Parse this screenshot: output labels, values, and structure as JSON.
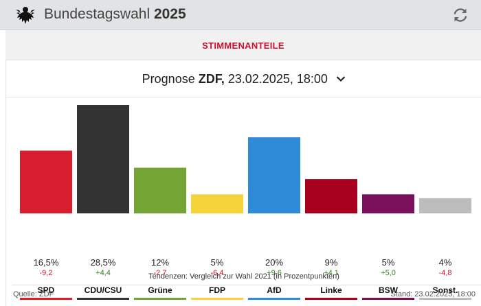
{
  "header": {
    "title": "Bundestagswahl",
    "year": "2025",
    "logo_icon": "federal-eagle-icon",
    "refresh_icon": "refresh-icon"
  },
  "tab": {
    "label": "STIMMENANTEILE"
  },
  "forecast": {
    "prefix": "Prognose",
    "source": "ZDF,",
    "datetime": "23.02.2025, 18:00",
    "dropdown_icon": "chevron-down-icon"
  },
  "colors": {
    "accent": "#d0102f",
    "positive": "#2e7d1a",
    "negative": "#d0102f"
  },
  "chart_data": {
    "type": "bar",
    "categories": [
      "SPD",
      "CDU/CSU",
      "Grüne",
      "FDP",
      "AfD",
      "Linke",
      "BSW",
      "Sonst."
    ],
    "values": [
      16.5,
      28.5,
      12,
      5,
      20,
      9,
      5,
      4
    ],
    "value_labels": [
      "16,5%",
      "28,5%",
      "12%",
      "5%",
      "20%",
      "9%",
      "5%",
      "4%"
    ],
    "changes": [
      -9.2,
      4.4,
      -2.7,
      -6.4,
      9.6,
      4.1,
      5.0,
      -4.8
    ],
    "change_labels": [
      "-9,2",
      "+4,4",
      "-2,7",
      "-6,4",
      "+9,6",
      "+4,1",
      "+5,0",
      "-4,8"
    ],
    "colors": [
      "#d71f2f",
      "#333333",
      "#74a534",
      "#f6d33b",
      "#2f8ad8",
      "#a8001f",
      "#7a0f5a",
      "#bdbdbd"
    ],
    "ylim": [
      0,
      28.5
    ],
    "grid": false,
    "note": "Tendenzen: Vergleich zur Wahl 2021 (in Prozentpunkten)"
  },
  "footer": {
    "source": "Quelle: ZDF",
    "stand": "Stand: 23.02.2025, 18:00"
  }
}
